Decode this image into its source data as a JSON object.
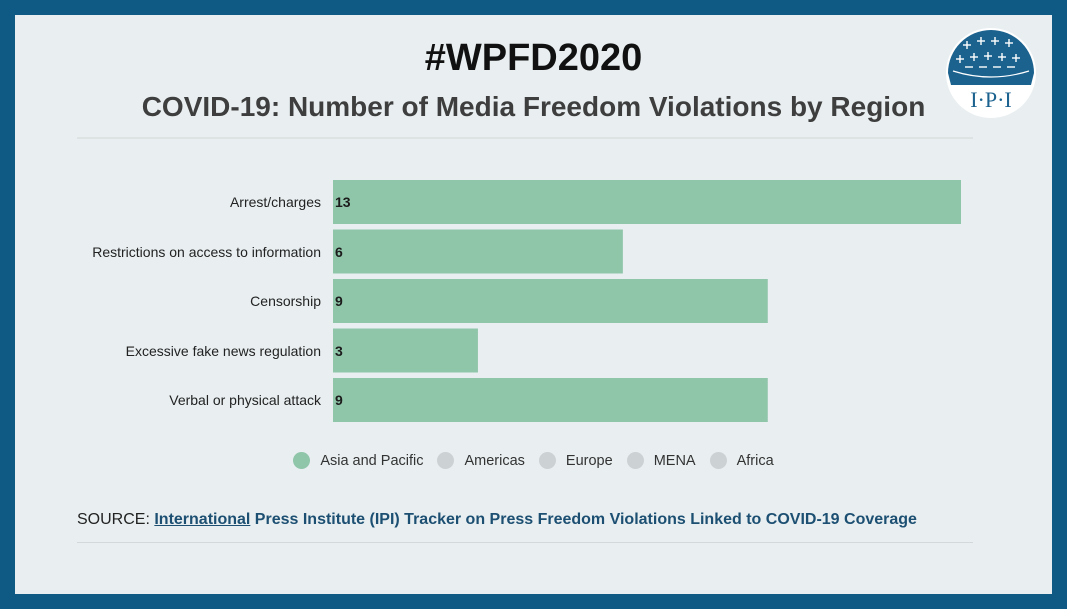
{
  "header": {
    "hashtag": "#WPFD2020",
    "title": "COVID-19: Number of Media Freedom Violations by Region",
    "logo_text": "I·P·I"
  },
  "chart_data": {
    "type": "bar",
    "orientation": "horizontal",
    "categories": [
      "Arrest/charges",
      "Restrictions on access to information",
      "Censorship",
      "Excessive fake news regulation",
      "Verbal or physical attack"
    ],
    "series": [
      {
        "name": "Asia and Pacific",
        "values": [
          13,
          6,
          9,
          3,
          9
        ]
      }
    ],
    "xlim": [
      0,
      13
    ],
    "grid": false,
    "bar_color": "#8fc5a9"
  },
  "legend": {
    "placement": "bottom",
    "items": [
      {
        "label": "Asia and Pacific",
        "color": "#8fc5a9"
      },
      {
        "label": "Americas",
        "color": "#ccd2d4"
      },
      {
        "label": "Europe",
        "color": "#ccd2d4"
      },
      {
        "label": "MENA",
        "color": "#ccd2d4"
      },
      {
        "label": "Africa",
        "color": "#ccd2d4"
      }
    ]
  },
  "source": {
    "prefix": "SOURCE: ",
    "link_word": "International",
    "link_rest": " Press Institute (IPI) Tracker on Press Freedom Violations Linked to COVID-19 Coverage"
  }
}
